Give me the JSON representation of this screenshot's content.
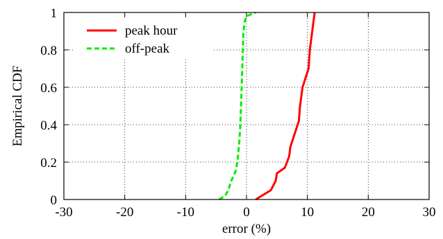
{
  "chart_data": {
    "type": "line",
    "xlabel": "error (%)",
    "ylabel": "Empirical CDF",
    "xlim": [
      -30,
      30
    ],
    "ylim": [
      0,
      1
    ],
    "xticks": [
      -30,
      -20,
      -10,
      0,
      10,
      20,
      30
    ],
    "yticks": [
      0,
      0.2,
      0.4,
      0.6,
      0.8,
      1
    ],
    "x_tick_labels": [
      "-30",
      "-20",
      "-10",
      "0",
      "10",
      "20",
      "30"
    ],
    "y_tick_labels": [
      "0",
      "0.2",
      "0.4",
      "0.6",
      "0.8",
      "1"
    ],
    "grid": "dotted",
    "legend_position": "top-left",
    "series": [
      {
        "name": "peak hour",
        "color": "#ff0000",
        "dash": "solid",
        "points": [
          [
            1.5,
            0
          ],
          [
            2.5,
            0.02
          ],
          [
            4,
            0.05
          ],
          [
            4.8,
            0.1
          ],
          [
            5,
            0.14
          ],
          [
            6.3,
            0.17
          ],
          [
            7,
            0.23
          ],
          [
            7.2,
            0.28
          ],
          [
            7.7,
            0.33
          ],
          [
            8.2,
            0.38
          ],
          [
            8.6,
            0.42
          ],
          [
            8.8,
            0.5
          ],
          [
            9.2,
            0.6
          ],
          [
            9.8,
            0.66
          ],
          [
            10.2,
            0.7
          ],
          [
            10.4,
            0.8
          ],
          [
            10.8,
            0.9
          ],
          [
            11,
            0.95
          ],
          [
            11.2,
            1
          ]
        ]
      },
      {
        "name": "off-peak",
        "color": "#00ee00",
        "dash": "dashed",
        "points": [
          [
            -4.5,
            0
          ],
          [
            -3.5,
            0.02
          ],
          [
            -3,
            0.05
          ],
          [
            -2.5,
            0.1
          ],
          [
            -1.8,
            0.15
          ],
          [
            -1.5,
            0.2
          ],
          [
            -1.2,
            0.3
          ],
          [
            -1,
            0.4
          ],
          [
            -0.9,
            0.5
          ],
          [
            -0.8,
            0.6
          ],
          [
            -0.7,
            0.7
          ],
          [
            -0.6,
            0.8
          ],
          [
            -0.5,
            0.9
          ],
          [
            -0.3,
            0.95
          ],
          [
            0,
            0.98
          ],
          [
            1.5,
            1
          ]
        ]
      }
    ]
  }
}
